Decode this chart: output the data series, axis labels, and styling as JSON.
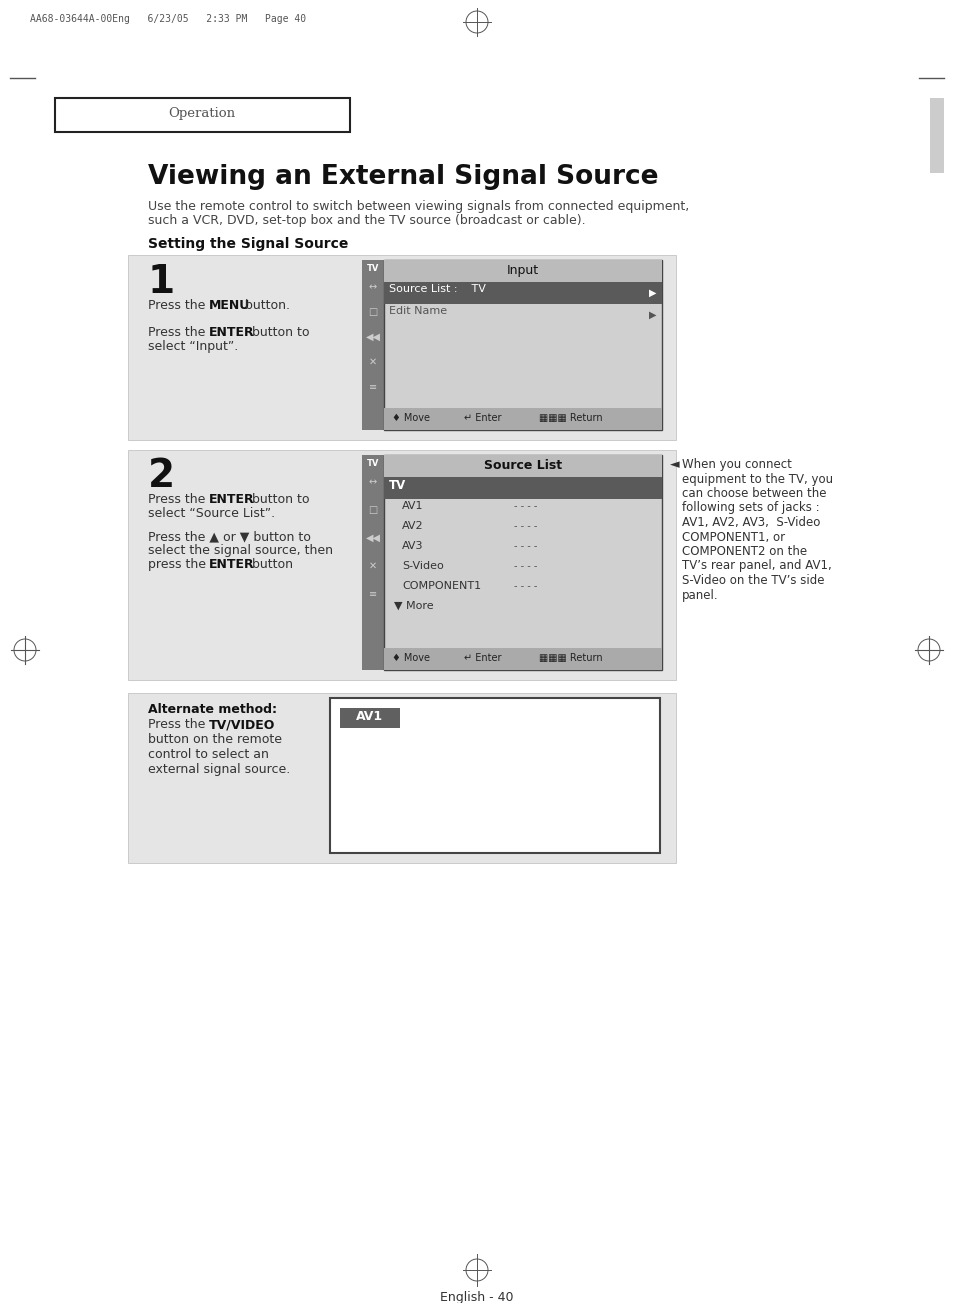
{
  "page_bg": "#ffffff",
  "header_text": "AA68-03644A-00Eng   6/23/05   2:33 PM   Page 40",
  "operation_label": "Operation",
  "main_title": "Viewing an External Signal Source",
  "intro1": "Use the remote control to switch between viewing signals from connected equipment,",
  "intro2": "such a VCR, DVD, set-top box and the TV source (broadcast or cable).",
  "section_title": "Setting the Signal Source",
  "footer_text": "English - 40",
  "step1_num": "1",
  "step2_num": "2",
  "screen1_title": "Input",
  "screen1_item1_a": "Source List :    TV",
  "screen1_item2": "Edit Name",
  "screen2_title": "Source List",
  "screen2_selected": "TV",
  "screen2_items": [
    [
      "AV1",
      "· · · ·"
    ],
    [
      "AV2",
      "· · · ·"
    ],
    [
      "AV3",
      "· · · ·"
    ],
    [
      "S-Video",
      "· · · ·"
    ],
    [
      "COMPONENT1",
      "· · · ·"
    ]
  ],
  "screen2_more": "▼ More",
  "note_lines": [
    "When you connect",
    "equipment to the TV, you",
    "can choose between the",
    "following sets of jacks :",
    "AV1, AV2, AV3,  S-Video",
    "COMPONENT1, or",
    "COMPONENT2 on the",
    "TV’s rear panel, and AV1,",
    "S-Video on the TV’s side",
    "panel."
  ],
  "alt_bold1": "Alternate method:",
  "alt_bold2": "TV/VIDEO",
  "av1_label": "AV1",
  "panel_bg": "#e5e5e5",
  "sidebar_dark": "#7a7a7a",
  "screen_bg": "#d0d0d0",
  "title_bar_bg": "#bbbbbb",
  "selected_bg": "#5a5a5a",
  "nav_bg": "#aaaaaa",
  "av1_btn_bg": "#606060"
}
